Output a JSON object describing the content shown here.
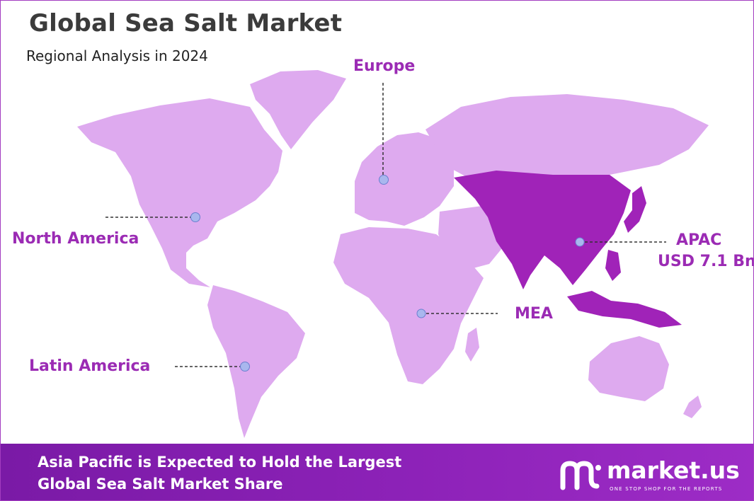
{
  "title": "Global Sea Salt Market",
  "subtitle": "Regional Analysis in 2024",
  "regions": {
    "europe": "Europe",
    "north_america": "North America",
    "latin_america": "Latin America",
    "mea": "MEA",
    "apac": "APAC",
    "apac_value": "USD 7.1 Bn"
  },
  "highlighted_region": "Asia Pacific",
  "colors": {
    "land": "#deaaef",
    "highlight": "#a023b8",
    "accent_text": "#9b2bb4",
    "marker": "#a9b7ee",
    "footer": "#8d22b8"
  },
  "footer": {
    "line1": "Asia Pacific is Expected to Hold the Largest",
    "line2": "Global Sea Salt Market Share"
  },
  "brand": {
    "name": "market.us",
    "tagline": "ONE STOP SHOP FOR THE REPORTS",
    "icon": "market-us-logo-icon"
  }
}
